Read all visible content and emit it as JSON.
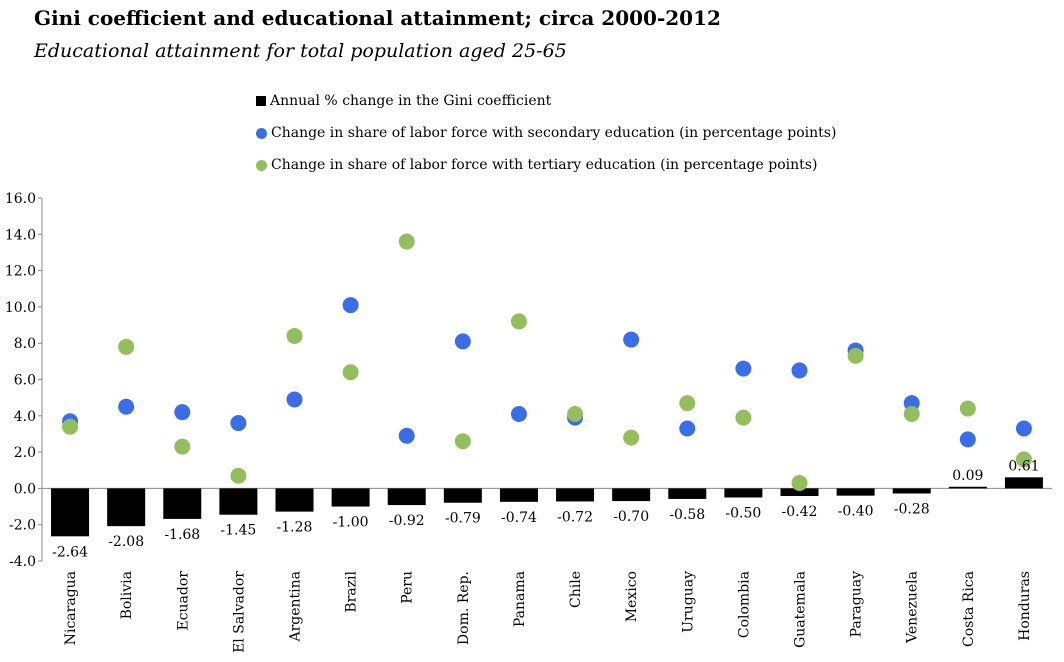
{
  "title": "Gini coefficient and educational attainment; circa 2000-2012",
  "subtitle": "Educational attainment for total population aged 25-65",
  "legend": [
    {
      "label": "Annual % change in the Gini coefficient",
      "color": "#000000",
      "marker": "square"
    },
    {
      "label": "Change in share of labor force with secondary education (in percentage points)",
      "color": "#3a6ee8",
      "marker": "circle"
    },
    {
      "label": "Change in share of labor force with tertiary education (in percentage points)",
      "color": "#92bf5c",
      "marker": "circle"
    }
  ],
  "chart_data": {
    "type": "bar",
    "categories": [
      "Nicaragua",
      "Bolivia",
      "Ecuador",
      "El Salvador",
      "Argentina",
      "Brazil",
      "Peru",
      "Dom. Rep.",
      "Panama",
      "Chile",
      "Mexico",
      "Uruguay",
      "Colombia",
      "Guatemala",
      "Paraguay",
      "Venezuela",
      "Costa Rica",
      "Honduras"
    ],
    "series": [
      {
        "name": "Annual % change in the Gini coefficient",
        "kind": "bar",
        "color": "#000000",
        "values": [
          -2.64,
          -2.08,
          -1.68,
          -1.45,
          -1.28,
          -1.0,
          -0.92,
          -0.79,
          -0.74,
          -0.72,
          -0.7,
          -0.58,
          -0.5,
          -0.42,
          -0.4,
          -0.28,
          0.09,
          0.61
        ],
        "labels": [
          "-2.64",
          "-2.08",
          "-1.68",
          "-1.45",
          "-1.28",
          "-1.00",
          "-0.92",
          "-0.79",
          "-0.74",
          "-0.72",
          "-0.70",
          "-0.58",
          "-0.50",
          "-0.42",
          "-0.40",
          "-0.28",
          "0.09",
          "0.61"
        ]
      },
      {
        "name": "Change in share of labor force with secondary education (in percentage points)",
        "kind": "scatter",
        "color": "#3a6ee8",
        "values": [
          3.7,
          4.5,
          4.2,
          3.6,
          4.9,
          10.1,
          2.9,
          8.1,
          4.1,
          3.9,
          8.2,
          3.3,
          6.6,
          6.5,
          7.6,
          4.7,
          2.7,
          3.3
        ]
      },
      {
        "name": "Change in share of labor force with tertiary education (in percentage points)",
        "kind": "scatter",
        "color": "#92bf5c",
        "values": [
          3.4,
          7.8,
          2.3,
          0.7,
          8.4,
          6.4,
          13.6,
          2.6,
          9.2,
          4.1,
          2.8,
          4.7,
          3.9,
          0.3,
          7.3,
          4.1,
          4.4,
          1.6
        ]
      }
    ],
    "yticks": [
      "16.0",
      "14.0",
      "12.0",
      "10.0",
      "8.0",
      "6.0",
      "4.0",
      "2.0",
      "0.0",
      "-2.0",
      "-4.0"
    ],
    "ylim": [
      -4,
      16
    ],
    "xlabel": "",
    "ylabel": "",
    "grid": false,
    "legend_position": "top"
  }
}
